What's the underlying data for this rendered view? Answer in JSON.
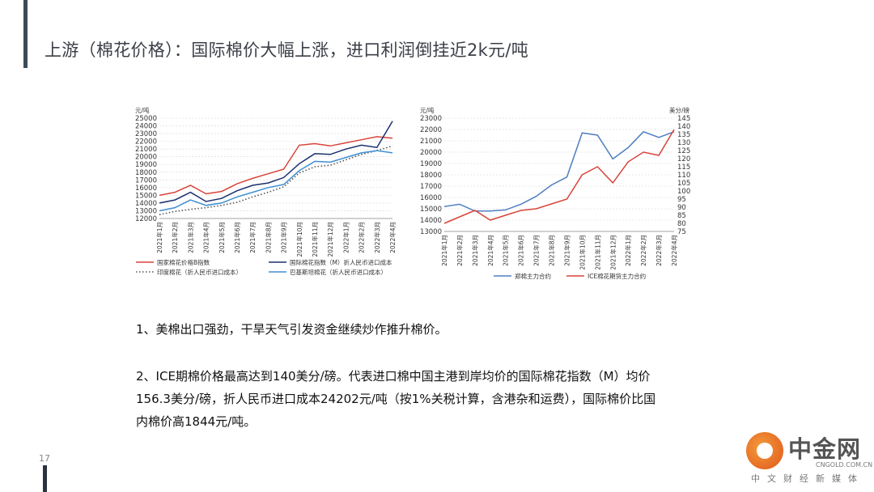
{
  "page": {
    "title": "上游（棉花价格）：国际棉价大幅上涨，进口利润倒挂近2k元/吨",
    "page_number": "17",
    "paragraph1": "1、美棉出口强劲，干旱天气引发资金继续炒作推升棉价。",
    "paragraph2_line1": "2、ICE期棉价格最高达到140美分/磅。代表进口棉中国主港到岸均价的国际棉花指数（M）均价",
    "paragraph2_line2": "156.3美分/磅，折人民币进口成本24202元/吨（按1%关税计算，含港杂和运费），国际棉价比国",
    "paragraph2_line3": "内棉价高1844元/吨。"
  },
  "logo": {
    "cn": "中金网",
    "en": "CNGOLD.COM.CN",
    "sub": "中文财经新媒体"
  },
  "colors": {
    "red": "#d8443a",
    "navy": "#1a2f6e",
    "lightblue": "#3f8fd2",
    "dotted": "#555555",
    "blue": "#4f7fc1"
  },
  "chart_data": [
    {
      "type": "line",
      "ylabel": "元/吨",
      "ylim": [
        12000,
        25000
      ],
      "yticks": [
        12000,
        13000,
        14000,
        15000,
        16000,
        17000,
        18000,
        19000,
        20000,
        21000,
        22000,
        23000,
        24000,
        25000
      ],
      "categories": [
        "2021年1月",
        "2021年2月",
        "2021年3月",
        "2021年4月",
        "2021年5月",
        "2021年6月",
        "2021年7月",
        "2021年8月",
        "2021年9月",
        "2021年10月",
        "2021年11月",
        "2021年12月",
        "2022年1月",
        "2022年2月",
        "2022年3月",
        "2022年4月"
      ],
      "legend": "bottom",
      "series": [
        {
          "name": "国家棉花价格B指数",
          "color": "#d8443a",
          "style": "solid",
          "values": [
            15000,
            15400,
            16300,
            15200,
            15500,
            16500,
            17200,
            17800,
            18400,
            21500,
            21700,
            21400,
            21800,
            22200,
            22600,
            22400
          ]
        },
        {
          "name": "国际棉花指数（M）折人民币进口成本",
          "color": "#1a2f6e",
          "style": "solid",
          "values": [
            14000,
            14400,
            15400,
            14200,
            14600,
            15600,
            16300,
            16600,
            17300,
            19100,
            20400,
            20300,
            21000,
            21500,
            21200,
            24600
          ]
        },
        {
          "name": "印度棉花（折人民币进口成本）",
          "color": "#555555",
          "style": "dotted",
          "values": [
            12500,
            12900,
            13200,
            13400,
            13700,
            14100,
            14800,
            15400,
            16100,
            17900,
            18700,
            18900,
            19600,
            20300,
            20800,
            21400
          ]
        },
        {
          "name": "巴基斯坦棉花（折人民币进口成本）",
          "color": "#3f8fd2",
          "style": "solid",
          "values": [
            13000,
            13400,
            14400,
            13700,
            14000,
            14800,
            15400,
            16000,
            16400,
            18200,
            19400,
            19300,
            19900,
            20500,
            20800,
            20500
          ]
        }
      ]
    },
    {
      "type": "line",
      "ylabel": "元/吨",
      "ylabel_right": "美分/磅",
      "ylim": [
        13000,
        23000
      ],
      "yticks": [
        13000,
        14000,
        15000,
        16000,
        17000,
        18000,
        19000,
        20000,
        21000,
        22000,
        23000
      ],
      "ylim_right": [
        75,
        145
      ],
      "yticks_right": [
        75,
        80,
        85,
        90,
        95,
        100,
        105,
        110,
        115,
        120,
        125,
        130,
        135,
        140,
        145
      ],
      "categories": [
        "2021年1月",
        "2021年2月",
        "2021年3月",
        "2021年4月",
        "2021年5月",
        "2021年6月",
        "2021年7月",
        "2021年8月",
        "2021年9月",
        "2021年10月",
        "2021年11月",
        "2021年12月",
        "2022年1月",
        "2022年2月",
        "2022年3月",
        "2022年4月"
      ],
      "legend": "bottom",
      "series": [
        {
          "name": "郑棉主力合约",
          "color": "#4f7fc1",
          "axis": "left",
          "values": [
            15200,
            15400,
            14800,
            14800,
            14900,
            15400,
            16100,
            17100,
            17800,
            21700,
            21500,
            19400,
            20400,
            21800,
            21300,
            21800
          ]
        },
        {
          "name": "ICE棉花期货主力合约",
          "color": "#d8443a",
          "axis": "right",
          "values": [
            80,
            84,
            88,
            82,
            85,
            88,
            89,
            92,
            95,
            110,
            115,
            105,
            118,
            124,
            122,
            138
          ]
        }
      ]
    }
  ]
}
